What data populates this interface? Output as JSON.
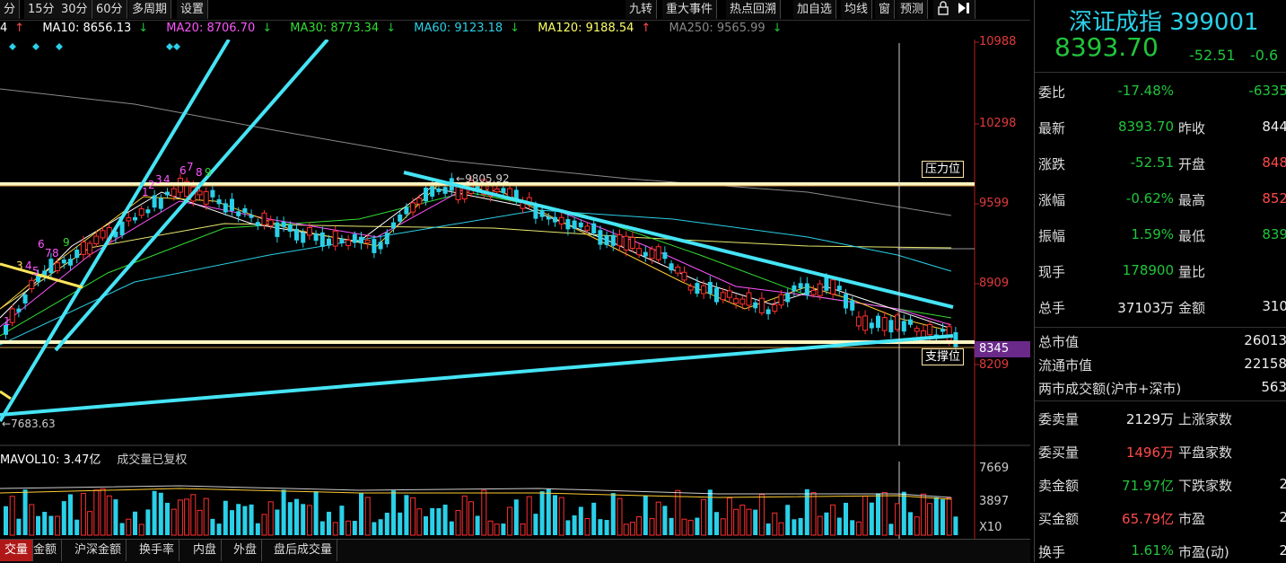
{
  "toolbar": {
    "left": [
      "15分",
      "30分",
      "60分",
      "多周期",
      "设置"
    ],
    "left_partial": "分",
    "right": [
      "九转",
      "重大事件",
      "热点回溯",
      "加自选",
      "均线",
      "窗",
      "预测"
    ]
  },
  "ma_bar": {
    "ma5_tail": "4",
    "ma10": "MA10: 8656.13",
    "ma20": "MA20: 8706.70",
    "ma30": "MA30: 8773.34",
    "ma60": "MA60: 9123.18",
    "ma120": "MA120: 9188.54",
    "ma250": "MA250: 9565.99",
    "colors": {
      "ma10": "#ffffff",
      "ma20": "#ff55ff",
      "ma30": "#33dd33",
      "ma60": "#2ad0e8",
      "ma120": "#ffff66",
      "ma250": "#888888"
    }
  },
  "price_axis": [
    "10988",
    "10298",
    "9599",
    "8909",
    "8345",
    "8209"
  ],
  "annotations": {
    "high_label": "9805.92",
    "low_label": "7683.63",
    "resistance": "压力位",
    "support": "支撑位"
  },
  "volume": {
    "mavol": "MAVOL10: 3.47亿",
    "note": "成交量已复权",
    "axis": [
      "7669",
      "3897",
      "X10"
    ]
  },
  "bottom_tabs": [
    "交量",
    "金额",
    "沪深金额",
    "换手率",
    "内盘",
    "外盘",
    "盘后成交量"
  ],
  "quote": {
    "name": "深证成指",
    "code": "399001",
    "price": "8393.70",
    "change": "-52.51",
    "change_pct": "-0.6",
    "rows": [
      {
        "k": "委比",
        "v": "-17.48%",
        "vc": "green",
        "k2": "",
        "v2": "-6335",
        "v2c": "green"
      },
      {
        "k": "最新",
        "v": "8393.70",
        "vc": "green",
        "k2": "昨收",
        "v2": "844",
        "v2c": "white"
      },
      {
        "k": "涨跌",
        "v": "-52.51",
        "vc": "green",
        "k2": "开盘",
        "v2": "848",
        "v2c": "red"
      },
      {
        "k": "涨幅",
        "v": "-0.62%",
        "vc": "green",
        "k2": "最高",
        "v2": "852",
        "v2c": "red"
      },
      {
        "k": "振幅",
        "v": "1.59%",
        "vc": "green",
        "k2": "最低",
        "v2": "839",
        "v2c": "green"
      },
      {
        "k": "现手",
        "v": "178900",
        "vc": "green",
        "k2": "量比",
        "v2": "",
        "v2c": "white"
      },
      {
        "k": "总手",
        "v": "37103万",
        "vc": "white",
        "k2": "金额",
        "v2": "310",
        "v2c": "white"
      }
    ],
    "rows_b": [
      {
        "k": "总市值",
        "v": "26013",
        "vc": "white"
      },
      {
        "k": "流通市值",
        "v": "22158",
        "vc": "white"
      },
      {
        "k": "两市成交额(沪市+深市)",
        "v": "563",
        "vc": "white"
      }
    ],
    "rows_c": [
      {
        "k": "委卖量",
        "v": "2129万",
        "vc": "white",
        "k2": "上涨家数",
        "v2": ""
      },
      {
        "k": "委买量",
        "v": "1496万",
        "vc": "red",
        "k2": "平盘家数",
        "v2": ""
      },
      {
        "k": "卖金额",
        "v": "71.97亿",
        "vc": "green",
        "k2": "下跌家数",
        "v2": "2"
      },
      {
        "k": "买金额",
        "v": "65.79亿",
        "vc": "red",
        "k2": "市盈",
        "v2": "2"
      },
      {
        "k": "换手",
        "v": "1.61%",
        "vc": "green",
        "k2": "市盈(动)",
        "v2": "2"
      }
    ]
  }
}
